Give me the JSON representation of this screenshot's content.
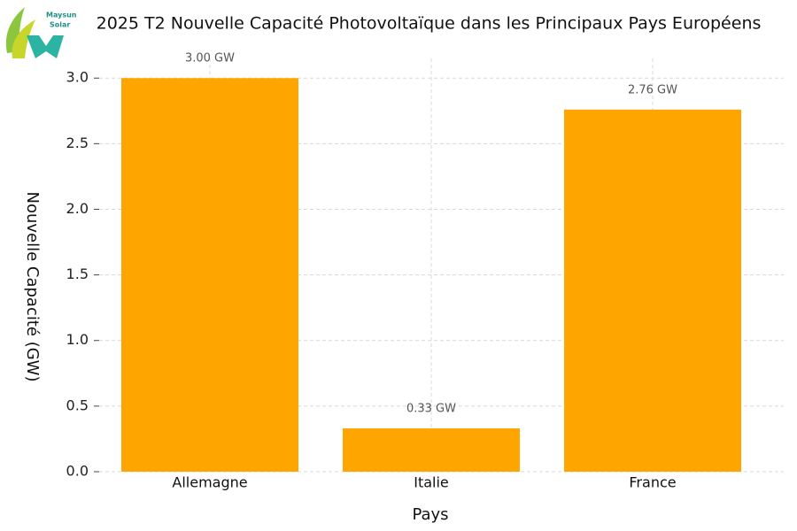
{
  "logo": {
    "line1": "Maysun",
    "line2": "Solar"
  },
  "chart_data": {
    "type": "bar",
    "title": "2025 T2 Nouvelle Capacité Photovoltaïque dans les Principaux Pays Européens",
    "x_label": "Pays",
    "y_label": "Nouvelle Capacité (GW)",
    "categories": [
      "Allemagne",
      "Italie",
      "France"
    ],
    "values": [
      3.0,
      0.33,
      2.76
    ],
    "value_labels": [
      "3.00 GW",
      "0.33 GW",
      "2.76 GW"
    ],
    "color": "#ffa500",
    "ylim": [
      0,
      3.15
    ],
    "yticks": [
      {
        "value": 0,
        "label": "0.0"
      },
      0.5,
      {
        "value": 1,
        "label": "1.0"
      },
      1.5,
      {
        "value": 2,
        "label": "2.0"
      },
      2.5,
      {
        "value": 3,
        "label": "3.0"
      }
    ],
    "grid": true
  }
}
